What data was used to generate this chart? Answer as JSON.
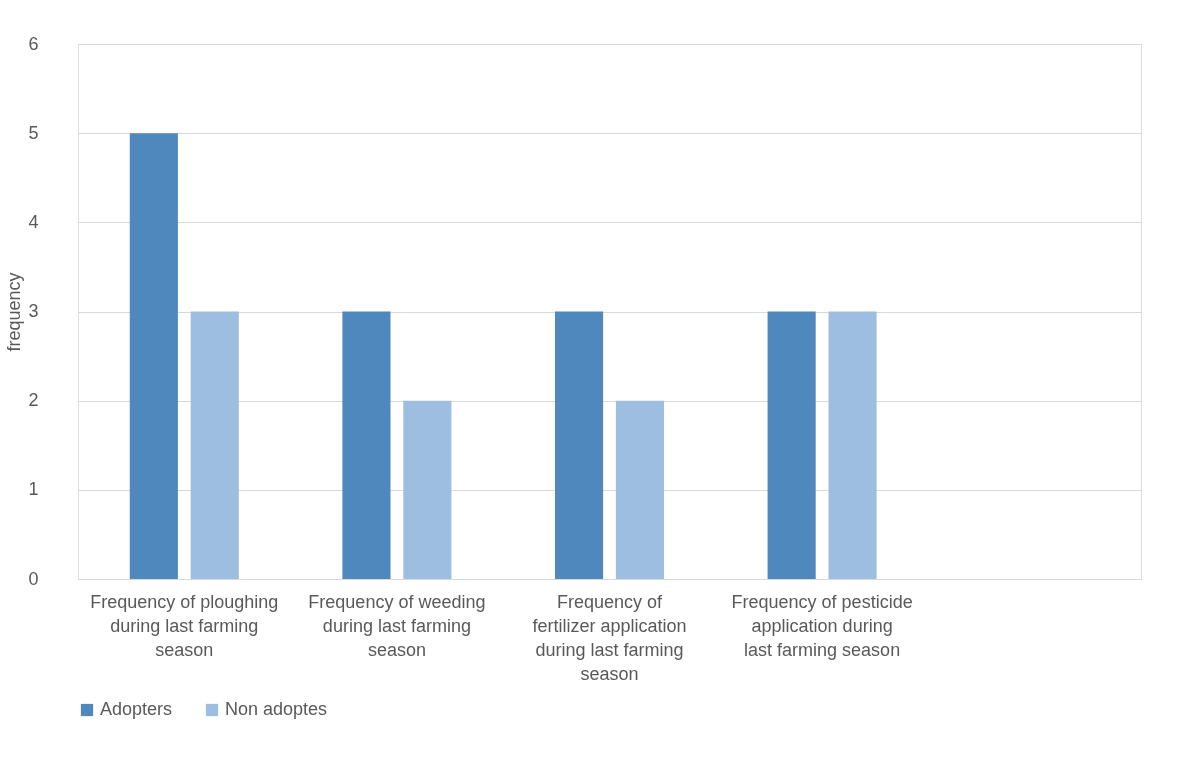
{
  "chart_data": {
    "type": "bar",
    "ylabel": "frequency",
    "categories": [
      "Frequency of ploughing during last farming season",
      "Frequency of weeding during last farming season",
      "Frequency of fertilizer application during last farming season",
      "Frequency of pesticide application during last farming season",
      null
    ],
    "series": [
      {
        "name": "Adopters",
        "color": "#4f88bd",
        "values": [
          5,
          3,
          3,
          3,
          null
        ]
      },
      {
        "name": "Non adoptes",
        "color": "#9dbde1",
        "values": [
          3,
          2,
          2,
          3,
          null
        ]
      }
    ],
    "ylim": [
      0,
      6
    ],
    "yticks": [
      0,
      1,
      2,
      3,
      4,
      5,
      6
    ],
    "grid": "y",
    "legend": "bottom"
  }
}
